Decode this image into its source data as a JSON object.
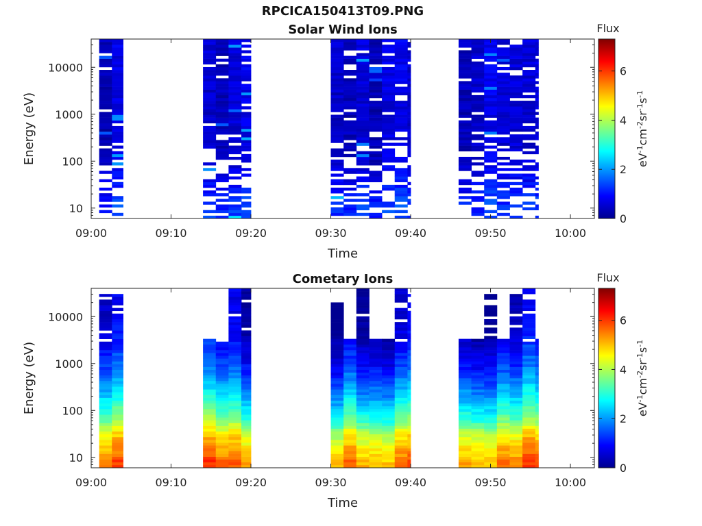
{
  "figure": {
    "title": "RPCICA150413T09.PNG"
  },
  "colors": {
    "jet": [
      "#00008f",
      "#0000ff",
      "#0080ff",
      "#00ffff",
      "#80ff80",
      "#ffff00",
      "#ff8000",
      "#ff0000",
      "#800000"
    ],
    "axis": "#222222",
    "background": "#ffffff"
  },
  "chart_data": [
    {
      "type": "heatmap",
      "title": "Solar Wind Ions",
      "xlabel": "Time",
      "ylabel": "Energy (eV)",
      "y_scale": "log",
      "x_ticks": [
        "09:00",
        "09:10",
        "09:20",
        "09:30",
        "09:40",
        "09:50",
        "10:00"
      ],
      "y_ticks": [
        "10",
        "100",
        "1000",
        "10000"
      ],
      "xlim": [
        "09:00",
        "10:03"
      ],
      "ylim": [
        6,
        40000
      ],
      "colorbar": {
        "label": "Flux",
        "unit": "eV-1cm-2sr-1s-1",
        "range": [
          0,
          7.3
        ],
        "ticks": [
          "0",
          "2",
          "4",
          "6"
        ]
      },
      "data_intervals": [
        [
          "09:01",
          "09:04"
        ],
        [
          "09:14",
          "09:20"
        ],
        [
          "09:30",
          "09:40"
        ],
        [
          "09:46",
          "09:56"
        ]
      ],
      "flux_by_energy": [
        {
          "energy": 10,
          "flux": 1.3
        },
        {
          "energy": 20,
          "flux": 1.1
        },
        {
          "energy": 100,
          "flux": 0.6
        },
        {
          "energy": 1000,
          "flux": 0.5
        },
        {
          "energy": 10000,
          "flux": 0.6
        }
      ]
    },
    {
      "type": "heatmap",
      "title": "Cometary Ions",
      "xlabel": "Time",
      "ylabel": "Energy (eV)",
      "y_scale": "log",
      "x_ticks": [
        "09:00",
        "09:10",
        "09:20",
        "09:30",
        "09:40",
        "09:50",
        "10:00"
      ],
      "y_ticks": [
        "10",
        "100",
        "1000",
        "10000"
      ],
      "xlim": [
        "09:00",
        "10:03"
      ],
      "ylim": [
        6,
        40000
      ],
      "colorbar": {
        "label": "Flux",
        "unit": "eV-1cm-2sr-1s-1",
        "range": [
          0,
          7.3
        ],
        "ticks": [
          "0",
          "2",
          "4",
          "6"
        ]
      },
      "data_intervals": [
        [
          "09:01",
          "09:04"
        ],
        [
          "09:14",
          "09:20"
        ],
        [
          "09:30",
          "09:40"
        ],
        [
          "09:46",
          "09:56"
        ]
      ],
      "flux_by_energy": [
        {
          "energy": 8,
          "flux": 5.5
        },
        {
          "energy": 15,
          "flux": 5.0
        },
        {
          "energy": 30,
          "flux": 4.5
        },
        {
          "energy": 60,
          "flux": 3.5
        },
        {
          "energy": 150,
          "flux": 2.6
        },
        {
          "energy": 400,
          "flux": 1.8
        },
        {
          "energy": 1000,
          "flux": 1.2
        },
        {
          "energy": 3000,
          "flux": 0.7
        },
        {
          "energy": 10000,
          "flux": 0.4
        }
      ]
    }
  ]
}
